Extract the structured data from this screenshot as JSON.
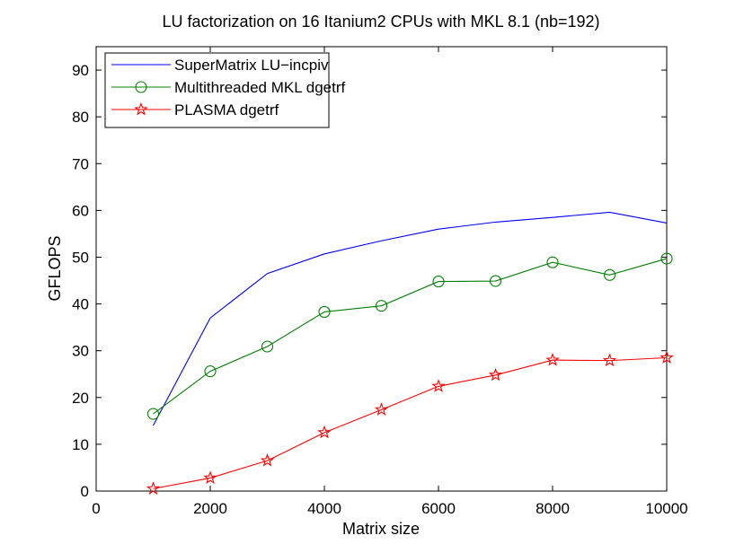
{
  "chart_data": {
    "type": "line",
    "title": "LU factorization on 16 Itanium2 CPUs with MKL 8.1 (nb=192)",
    "xlabel": "Matrix size",
    "ylabel": "GFLOPS",
    "xlim": [
      0,
      10000
    ],
    "ylim": [
      0,
      95
    ],
    "xticks": [
      "0",
      "2000",
      "4000",
      "6000",
      "8000",
      "10000"
    ],
    "yticks": [
      "0",
      "10",
      "20",
      "30",
      "40",
      "50",
      "60",
      "70",
      "80",
      "90"
    ],
    "grid": false,
    "legend_position": "top-left",
    "x": [
      1000,
      2000,
      3000,
      4000,
      5000,
      6000,
      7000,
      8000,
      9000,
      10000
    ],
    "series": [
      {
        "name": "SuperMatrix LU−incpiv",
        "color": "#0000ff",
        "marker": "none",
        "values": [
          14,
          37,
          46.5,
          50.7,
          53.5,
          56,
          57.5,
          58.5,
          59.6,
          57.3
        ]
      },
      {
        "name": "Multithreaded MKL dgetrf",
        "color": "#008000",
        "marker": "circle",
        "values": [
          16.5,
          25.6,
          30.9,
          38.3,
          39.6,
          44.8,
          44.9,
          48.9,
          46.2,
          49.7
        ]
      },
      {
        "name": "PLASMA dgetrf",
        "color": "#ff0000",
        "marker": "star",
        "values": [
          0.5,
          2.8,
          6.5,
          12.5,
          17.4,
          22.4,
          24.8,
          28,
          27.9,
          28.5
        ]
      }
    ]
  }
}
